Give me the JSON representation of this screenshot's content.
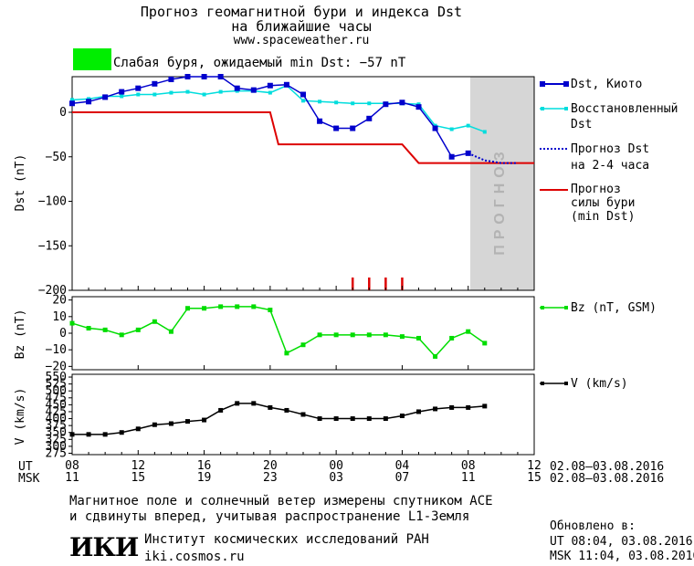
{
  "header": {
    "title_line1": "Прогноз геомагнитной бури и индекса Dst",
    "title_line2": "на ближайшие часы",
    "url": "www.spaceweather.ru",
    "status_color": "#00ee00",
    "status_text": "Слабая буря, ожидаемый min Dst: −57 nT"
  },
  "chart_data": [
    {
      "type": "line",
      "ylabel": "Dst (nT)",
      "ylim": [
        -200,
        40
      ],
      "yticks": [
        0,
        -50,
        -100,
        -150,
        -200
      ],
      "xlim_hours": [
        0,
        28
      ],
      "forecast_band_hours": [
        24,
        28
      ],
      "forecast_band_label": "ПРОГНОЗ",
      "series": [
        {
          "name": "Dst, Киото",
          "color": "#0000cc",
          "x": [
            0,
            1,
            2,
            3,
            4,
            5,
            6,
            7,
            8,
            9,
            10,
            11,
            12,
            13,
            14,
            15,
            16,
            17,
            18,
            19,
            20,
            21,
            22,
            23,
            24
          ],
          "y": [
            10,
            12,
            17,
            23,
            27,
            32,
            37,
            40,
            40,
            40,
            27,
            25,
            30,
            31,
            20,
            -10,
            -18,
            -18,
            -7,
            9,
            11,
            6,
            -18,
            -50,
            -46
          ]
        },
        {
          "name": "Восстановленный Dst",
          "color": "#00dddd",
          "x": [
            0,
            1,
            2,
            3,
            4,
            5,
            6,
            7,
            8,
            9,
            10,
            11,
            12,
            13,
            14,
            15,
            16,
            17,
            18,
            19,
            20,
            21,
            22,
            23,
            24,
            25
          ],
          "y": [
            14,
            15,
            18,
            18,
            20,
            20,
            22,
            23,
            20,
            23,
            24,
            24,
            22,
            30,
            13,
            12,
            11,
            10,
            10,
            10,
            10,
            9,
            -15,
            -19,
            -15,
            -22
          ]
        },
        {
          "name": "Прогноз Dst на 2-4 часа",
          "color": "#0000cc",
          "x": [
            24,
            25,
            26,
            27
          ],
          "y": [
            -46,
            -54,
            -57,
            -57
          ]
        },
        {
          "name": "Прогноз силы бури (min Dst)",
          "color": "#dd0000",
          "x": [
            0,
            12,
            12.5,
            20,
            21,
            28
          ],
          "y": [
            0,
            0,
            -36,
            -36,
            -57,
            -57
          ]
        }
      ],
      "markers_hours": [
        17,
        18,
        19,
        20
      ]
    },
    {
      "type": "line",
      "ylabel": "Bz (nT)",
      "ylim": [
        -22,
        22
      ],
      "yticks": [
        20,
        10,
        0,
        -10,
        -20
      ],
      "series": [
        {
          "name": "Bz (nT, GSM)",
          "color": "#00dd00",
          "x": [
            0,
            1,
            2,
            3,
            4,
            5,
            6,
            7,
            8,
            9,
            10,
            11,
            12,
            13,
            14,
            15,
            16,
            17,
            18,
            19,
            20,
            21,
            22,
            23,
            24,
            25
          ],
          "y": [
            6,
            3,
            2,
            -1,
            2,
            7,
            1,
            15,
            15,
            16,
            16,
            16,
            14,
            -12,
            -7,
            -1,
            -1,
            -1,
            -1,
            -1,
            -2,
            -3,
            -14,
            -3,
            1,
            -6
          ]
        }
      ]
    },
    {
      "type": "line",
      "ylabel": "V (km/s)",
      "ylim": [
        270,
        560
      ],
      "yticks": [
        550,
        500,
        450,
        400,
        350,
        300
      ],
      "extra_ticks": [
        525,
        475,
        425,
        375,
        325,
        275
      ],
      "series": [
        {
          "name": "V (km/s)",
          "color": "#000000",
          "x": [
            0,
            1,
            2,
            3,
            4,
            5,
            6,
            7,
            8,
            9,
            10,
            11,
            12,
            13,
            14,
            15,
            16,
            17,
            18,
            19,
            20,
            21,
            22,
            23,
            24,
            25
          ],
          "y": [
            343,
            343,
            343,
            350,
            363,
            378,
            382,
            390,
            395,
            430,
            455,
            455,
            440,
            430,
            415,
            400,
            400,
            400,
            400,
            400,
            410,
            425,
            435,
            440,
            440,
            445
          ]
        }
      ]
    }
  ],
  "x_axis": {
    "ut_label": "UT",
    "msk_label": "MSK",
    "ut_ticks": [
      "08",
      "12",
      "16",
      "20",
      "00",
      "04",
      "08",
      "12"
    ],
    "msk_ticks": [
      "11",
      "15",
      "19",
      "23",
      "03",
      "07",
      "11",
      "15"
    ],
    "ut_range": "02.08–03.08.2016",
    "msk_range": "02.08–03.08.2016"
  },
  "legend": {
    "dst_kyoto": "Dst, Киото",
    "dst_restored_1": "Восстановленный",
    "dst_restored_2": "Dst",
    "forecast_1": "Прогноз Dst",
    "forecast_2": "на 2-4 часа",
    "storm_1": "Прогноз",
    "storm_2": "силы бури",
    "storm_3": "(min Dst)",
    "bz": "Bz (nT, GSM)",
    "v": "V (km/s)"
  },
  "footer": {
    "note_1": "Магнитное поле и солнечный ветер измерены спутником ACE",
    "note_2": "и сдвинуты вперед, учитывая распространение L1-Земля",
    "logo": "ИКИ",
    "institute": "Институт космических исследований РАН",
    "site": "iki.cosmos.ru",
    "updated_label": "Обновлено в:",
    "updated_ut": "UT  08:04, 03.08.2016",
    "updated_msk": "MSK 11:04, 03.08.2016"
  }
}
